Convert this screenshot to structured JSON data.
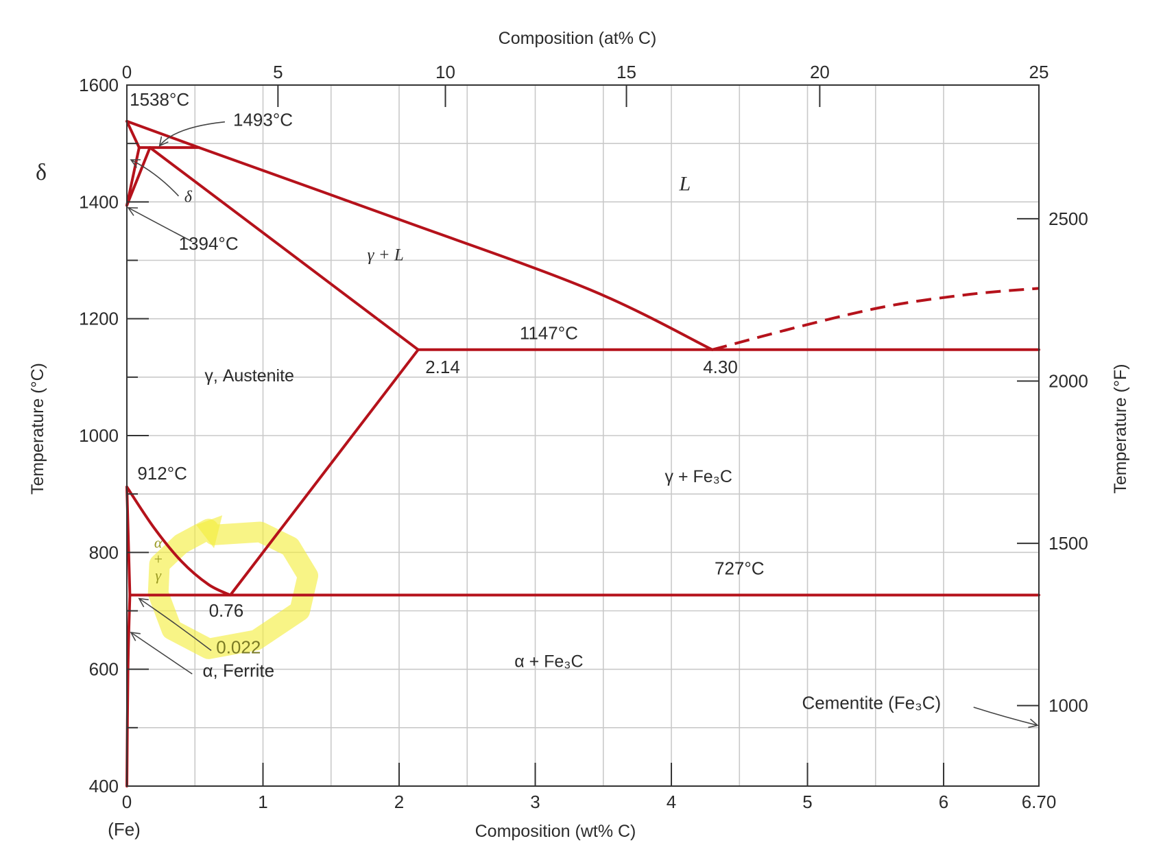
{
  "chart_data": {
    "type": "line",
    "title": "",
    "xlabel": "Composition (wt% C)",
    "x2label": "Composition (at% C)",
    "ylabel": "Temperature (°C)",
    "y2label": "Temperature (°F)",
    "xlim": [
      0,
      6.7
    ],
    "ylim": [
      400,
      1600
    ],
    "x_ticks": [
      0,
      1,
      2,
      3,
      4,
      5,
      6,
      6.7
    ],
    "x_tick_labels": [
      "0",
      "1",
      "2",
      "3",
      "4",
      "5",
      "6",
      "6.70"
    ],
    "x_endpoint_label": "(Fe)",
    "y_ticks": [
      400,
      600,
      800,
      1000,
      1200,
      1400,
      1600
    ],
    "y_tick_labels": [
      "400",
      "600",
      "800",
      "1000",
      "1200",
      "1400",
      "1600"
    ],
    "at_ticks": [
      {
        "label": "0",
        "wt": 0
      },
      {
        "label": "5",
        "wt": 1.11
      },
      {
        "label": "10",
        "wt": 2.34
      },
      {
        "label": "15",
        "wt": 3.67
      },
      {
        "label": "20",
        "wt": 5.09
      },
      {
        "label": "25",
        "wt": 6.7
      }
    ],
    "f_ticks": [
      {
        "label": "1000",
        "f": 1000
      },
      {
        "label": "1500",
        "f": 1500
      },
      {
        "label": "2000",
        "f": 2000
      },
      {
        "label": "2500",
        "f": 2500
      }
    ],
    "series": [
      {
        "style": "solid",
        "x": [
          0,
          4.3
        ],
        "y": [
          1538,
          1147
        ],
        "curve": [
          [
            0,
            1538
          ],
          [
            0.53,
            1493
          ],
          [
            2.0,
            1370
          ],
          [
            3.4,
            1250
          ],
          [
            4.3,
            1147
          ]
        ]
      },
      {
        "style": "solid",
        "x": [
          0,
          0.09
        ],
        "y": [
          1538,
          1493
        ],
        "curve": [
          [
            0,
            1538
          ],
          [
            0.09,
            1493
          ]
        ]
      },
      {
        "style": "solid",
        "x": [
          0.09,
          0.53
        ],
        "y": [
          1493,
          1493
        ],
        "curve": [
          [
            0.09,
            1493
          ],
          [
            0.53,
            1493
          ]
        ]
      },
      {
        "style": "solid",
        "x": [
          0,
          0.09
        ],
        "y": [
          1394,
          1493
        ],
        "curve": [
          [
            0,
            1394
          ],
          [
            0.09,
            1493
          ]
        ]
      },
      {
        "style": "solid",
        "x": [
          0,
          0.17
        ],
        "y": [
          1394,
          1493
        ],
        "curve": [
          [
            0,
            1394
          ],
          [
            0.17,
            1493
          ]
        ]
      },
      {
        "style": "solid",
        "x": [
          0.17,
          2.14
        ],
        "y": [
          1493,
          1147
        ],
        "curve": [
          [
            0.17,
            1493
          ],
          [
            2.14,
            1147
          ]
        ]
      },
      {
        "style": "solid",
        "x": [
          2.14,
          6.7
        ],
        "y": [
          1147,
          1147
        ],
        "curve": [
          [
            2.14,
            1147
          ],
          [
            6.7,
            1147
          ]
        ]
      },
      {
        "style": "dashed",
        "x": [
          4.3,
          6.7
        ],
        "y": [
          1147,
          1252
        ],
        "curve": [
          [
            4.3,
            1147
          ],
          [
            5.0,
            1190
          ],
          [
            5.6,
            1222
          ],
          [
            6.2,
            1242
          ],
          [
            6.7,
            1252
          ]
        ]
      },
      {
        "style": "solid",
        "x": [
          0.76,
          2.14
        ],
        "y": [
          727,
          1147
        ],
        "curve": [
          [
            0.76,
            727
          ],
          [
            2.14,
            1147
          ]
        ]
      },
      {
        "style": "solid",
        "x": [
          0,
          0.76
        ],
        "y": [
          912,
          727
        ],
        "curve": [
          [
            0,
            912
          ],
          [
            0.2,
            842
          ],
          [
            0.4,
            785
          ],
          [
            0.6,
            745
          ],
          [
            0.76,
            727
          ]
        ]
      },
      {
        "style": "solid",
        "x": [
          0,
          0.022
        ],
        "y": [
          912,
          727
        ],
        "curve": [
          [
            0,
            912
          ],
          [
            0.022,
            727
          ]
        ]
      },
      {
        "style": "solid",
        "x": [
          0.022,
          6.7
        ],
        "y": [
          727,
          727
        ],
        "curve": [
          [
            0.022,
            727
          ],
          [
            6.7,
            727
          ]
        ]
      },
      {
        "style": "solid",
        "x": [
          0,
          0.022
        ],
        "y": [
          400,
          727
        ],
        "curve": [
          [
            0,
            400
          ],
          [
            0.008,
            600
          ],
          [
            0.022,
            727
          ]
        ]
      }
    ],
    "regions": [
      {
        "label": "L",
        "x": 4.1,
        "y": 1420,
        "style": "italic-serif"
      },
      {
        "label": "γ + L",
        "x": 1.9,
        "y": 1300,
        "style": "italic-serif"
      },
      {
        "label": "γ, Austenite",
        "x": 0.9,
        "y": 1093,
        "style": "normal"
      },
      {
        "label": "γ + Fe₃C",
        "x": 4.2,
        "y": 920,
        "style": "normal"
      },
      {
        "label": "α + Fe₃C",
        "x": 3.1,
        "y": 604,
        "style": "normal"
      },
      {
        "label": "α",
        "x": 0.23,
        "y": 808,
        "style": "small"
      },
      {
        "label": "+",
        "x": 0.23,
        "y": 780,
        "style": "small"
      },
      {
        "label": "γ",
        "x": 0.23,
        "y": 752,
        "style": "small"
      }
    ],
    "annotations": [
      {
        "label": "1538°C",
        "x": 0.24,
        "y": 1565
      },
      {
        "label": "1493°C",
        "x": 1.0,
        "y": 1530
      },
      {
        "label": "δ",
        "x": 0.45,
        "y": 1400
      },
      {
        "label": "1394°C",
        "x": 0.6,
        "y": 1318
      },
      {
        "label": "1147°C",
        "x": 3.1,
        "y": 1165
      },
      {
        "label": "2.14",
        "x": 2.32,
        "y": 1107
      },
      {
        "label": "4.30",
        "x": 4.36,
        "y": 1107
      },
      {
        "label": "912°C",
        "x": 0.26,
        "y": 925
      },
      {
        "label": "727°C",
        "x": 4.5,
        "y": 762
      },
      {
        "label": "0.76",
        "x": 0.73,
        "y": 690
      },
      {
        "label": "0.022",
        "x": 0.82,
        "y": 627
      },
      {
        "label": "α, Ferrite",
        "x": 0.82,
        "y": 587
      },
      {
        "label": "Cementite (Fe₃C)",
        "x": 5.47,
        "y": 532
      }
    ],
    "side_label": "δ",
    "grid": true,
    "legend": "none",
    "highlight_color": "#f3ee3c",
    "line_color": "#b5121b"
  }
}
